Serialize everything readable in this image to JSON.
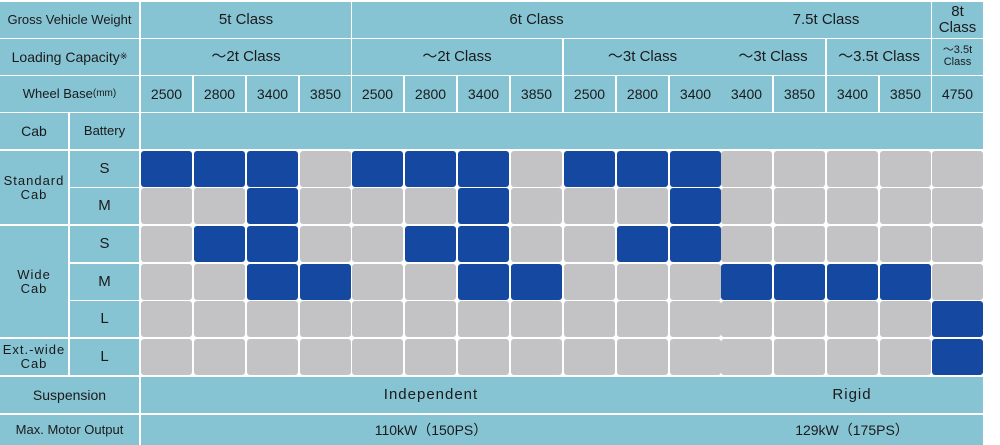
{
  "header": {
    "gvw_label": "Gross Vehicle Weight",
    "gvw_classes": [
      "5t Class",
      "6t Class",
      "7.5t Class",
      "8t Class"
    ],
    "loading_label": "Loading Capacity",
    "loading_mark": "※",
    "loading_classes": [
      "～2t Class",
      "～2t Class",
      "～3t Class",
      "～3t Class",
      "～3.5t Class",
      "～3.5t Class"
    ],
    "wheelbase_label": "Wheel Base",
    "wheelbase_unit": "(mm)",
    "wheelbases": [
      "2500",
      "2800",
      "3400",
      "3850",
      "2500",
      "2800",
      "3400",
      "3850",
      "2500",
      "2800",
      "3400",
      "3400",
      "3850",
      "3400",
      "3850",
      "4750"
    ]
  },
  "cab_header": "Cab",
  "battery_header": "Battery",
  "groups": [
    {
      "cab": "Standard\nCab",
      "batteries": [
        "S",
        "M"
      ]
    },
    {
      "cab": "Wide\nCab",
      "batteries": [
        "S",
        "M",
        "L"
      ]
    },
    {
      "cab": "Ext.-wide\nCab",
      "batteries": [
        "L"
      ]
    }
  ],
  "availability": [
    [
      1,
      1,
      1,
      0,
      1,
      1,
      1,
      0,
      1,
      1,
      1,
      0,
      0,
      0,
      0,
      0
    ],
    [
      0,
      0,
      1,
      0,
      0,
      0,
      1,
      0,
      0,
      0,
      1,
      0,
      0,
      0,
      0,
      0
    ],
    [
      0,
      1,
      1,
      0,
      0,
      1,
      1,
      0,
      0,
      1,
      1,
      0,
      0,
      0,
      0,
      0
    ],
    [
      0,
      0,
      1,
      1,
      0,
      0,
      1,
      1,
      0,
      0,
      0,
      1,
      1,
      1,
      1,
      0
    ],
    [
      0,
      0,
      0,
      0,
      0,
      0,
      0,
      0,
      0,
      0,
      0,
      0,
      0,
      0,
      0,
      1
    ],
    [
      0,
      0,
      0,
      0,
      0,
      0,
      0,
      0,
      0,
      0,
      0,
      0,
      0,
      0,
      0,
      1
    ]
  ],
  "suspension": {
    "label": "Suspension",
    "values": [
      "Independent",
      "Rigid"
    ]
  },
  "motor": {
    "label": "Max. Motor Output",
    "values": [
      "110kW（150PS）",
      "129kW（175PS）"
    ]
  },
  "colors": {
    "available": "#1548a0",
    "unavailable": "#c3c3c5",
    "header": "#86c4d4"
  }
}
